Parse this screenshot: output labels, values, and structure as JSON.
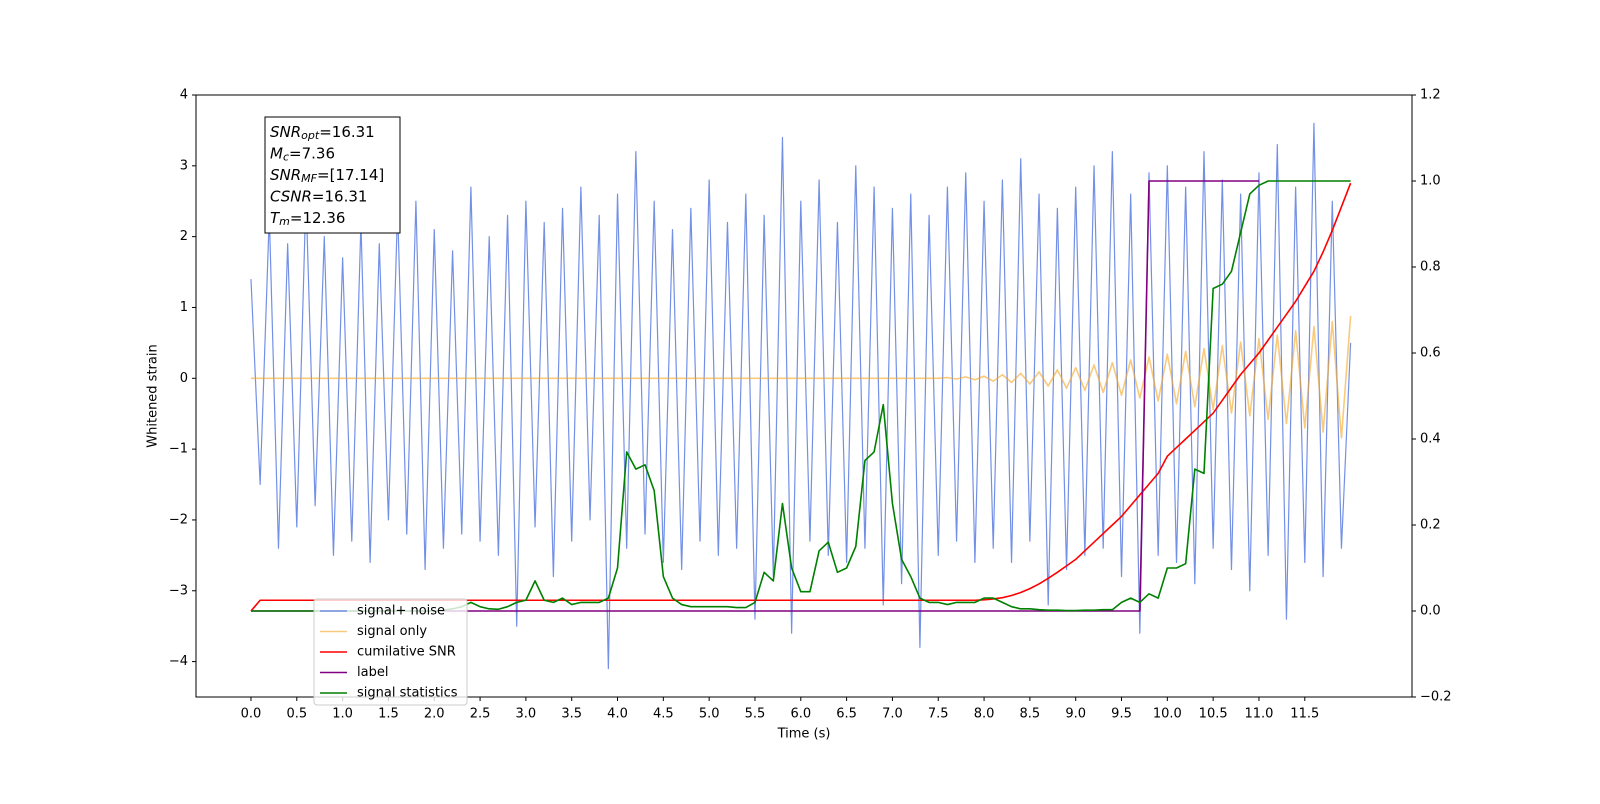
{
  "chart_data": {
    "type": "line",
    "xlabel": "Time (s)",
    "ylabel": "Whitened strain",
    "xlim": [
      -0.6,
      12.67
    ],
    "ylim": [
      -4.5,
      4
    ],
    "y2lim": [
      -0.2,
      1.2
    ],
    "grid": false,
    "legend": "lower left",
    "xticks": [
      {
        "value": 0,
        "label": "0.0"
      },
      0.5,
      {
        "value": 1,
        "label": "1.0"
      },
      1.5,
      {
        "value": 2,
        "label": "2.0"
      },
      2.5,
      {
        "value": 3,
        "label": "3.0"
      },
      3.5,
      {
        "value": 4,
        "label": "4.0"
      },
      4.5,
      {
        "value": 5,
        "label": "5.0"
      },
      5.5,
      {
        "value": 6,
        "label": "6.0"
      },
      6.5,
      {
        "value": 7,
        "label": "7.0"
      },
      7.5,
      {
        "value": 8,
        "label": "8.0"
      },
      8.5,
      {
        "value": 9,
        "label": "9.0"
      },
      9.5,
      {
        "value": 10,
        "label": "10.0"
      },
      10.5,
      {
        "value": 11,
        "label": "11.0"
      },
      11.5
    ],
    "yticks": [
      {
        "value": -4,
        "label": "−4"
      },
      {
        "value": -3,
        "label": "−3"
      },
      {
        "value": -2,
        "label": "−2"
      },
      {
        "value": -1,
        "label": "−1"
      },
      0,
      1,
      2,
      3,
      4
    ],
    "y2ticks": [
      {
        "value": -0.2,
        "label": "−0.2"
      },
      {
        "value": 0,
        "label": "0.0"
      },
      0.2,
      0.4,
      0.6,
      0.8,
      {
        "value": 1,
        "label": "1.0"
      },
      1.2
    ],
    "annotation": [
      {
        "base": "SNR",
        "sub": "opt",
        "rest": "=16.31"
      },
      {
        "base": "M",
        "sub": "c",
        "rest": "=7.36"
      },
      {
        "base": "SNR",
        "sub": "MF",
        "rest": "=[17.14]"
      },
      {
        "base": "CSNR",
        "rest": "=16.31"
      },
      {
        "base": "T",
        "sub": "m",
        "rest": "=12.36"
      }
    ],
    "x": [
      0,
      0.1,
      0.2,
      0.3,
      0.4,
      0.5,
      0.6,
      0.7,
      0.8,
      0.9,
      1,
      1.1,
      1.2,
      1.3,
      1.4,
      1.5,
      1.6,
      1.7,
      1.8,
      1.9,
      2,
      2.1,
      2.2,
      2.3,
      2.4,
      2.5,
      2.6,
      2.7,
      2.8,
      2.9,
      3,
      3.1,
      3.2,
      3.3,
      3.4,
      3.5,
      3.6,
      3.7,
      3.8,
      3.9,
      4,
      4.1,
      4.2,
      4.3,
      4.4,
      4.5,
      4.6,
      4.7,
      4.8,
      4.9,
      5,
      5.1,
      5.2,
      5.3,
      5.4,
      5.5,
      5.6,
      5.7,
      5.8,
      5.9,
      6,
      6.1,
      6.2,
      6.3,
      6.4,
      6.5,
      6.6,
      6.7,
      6.8,
      6.9,
      7,
      7.1,
      7.2,
      7.3,
      7.4,
      7.5,
      7.6,
      7.7,
      7.8,
      7.9,
      8,
      8.1,
      8.2,
      8.3,
      8.4,
      8.5,
      8.6,
      8.7,
      8.8,
      8.9,
      9,
      9.1,
      9.2,
      9.3,
      9.4,
      9.5,
      9.6,
      9.7,
      9.8,
      9.9,
      10,
      10.1,
      10.2,
      10.3,
      10.4,
      10.5,
      10.6,
      10.7,
      10.8,
      10.9,
      11,
      11.1,
      11.2,
      11.3,
      11.4,
      11.5,
      11.6,
      11.7,
      11.8,
      11.9,
      12
    ],
    "series": [
      {
        "name": "signal+ noise",
        "color": "#7390e6",
        "values": [
          1.4,
          -1.5,
          2.3,
          -2.4,
          1.9,
          -2.1,
          2.6,
          -1.8,
          2.0,
          -2.5,
          1.7,
          -2.3,
          2.2,
          -2.6,
          1.9,
          -2.0,
          2.4,
          -2.2,
          2.5,
          -2.7,
          2.1,
          -2.4,
          1.8,
          -2.2,
          2.7,
          -2.3,
          2.0,
          -2.5,
          2.3,
          -3.5,
          2.5,
          -2.1,
          2.2,
          -2.8,
          2.4,
          -2.3,
          2.7,
          -2.0,
          2.3,
          -4.1,
          2.6,
          -2.4,
          3.2,
          -2.2,
          2.5,
          -2.6,
          2.1,
          -2.7,
          2.4,
          -2.3,
          2.8,
          -2.5,
          2.2,
          -2.4,
          2.6,
          -3.4,
          2.3,
          -2.8,
          3.4,
          -3.6,
          2.5,
          -2.3,
          2.8,
          -2.5,
          2.2,
          -2.6,
          3.0,
          -2.4,
          2.7,
          -3.2,
          2.4,
          -2.9,
          2.6,
          -3.8,
          2.3,
          -2.5,
          2.7,
          -2.3,
          2.9,
          -2.6,
          2.5,
          -2.4,
          2.8,
          -2.6,
          3.1,
          -2.3,
          2.6,
          -3.2,
          2.4,
          -2.7,
          2.7,
          -2.5,
          3.0,
          -2.4,
          3.2,
          -2.8,
          2.6,
          -3.6,
          2.9,
          -2.5,
          3.0,
          -2.6,
          2.7,
          -2.9,
          3.2,
          -2.4,
          2.8,
          -2.7,
          2.6,
          -3.0,
          2.9,
          -2.5,
          3.3,
          -3.4,
          2.7,
          -2.6,
          3.6,
          -2.8,
          2.5,
          -2.4,
          0.5
        ]
      },
      {
        "name": "signal only",
        "color": "#f5a623",
        "values": [
          0,
          0,
          0,
          0,
          0,
          0,
          0,
          0,
          0,
          0,
          0,
          0,
          0,
          0,
          0,
          0,
          0,
          0,
          0,
          0,
          0,
          0,
          0,
          0,
          0,
          0,
          0,
          0,
          0,
          0,
          0,
          0,
          0,
          0,
          0,
          0,
          0,
          0,
          0,
          0,
          0,
          0,
          0,
          0,
          0,
          0,
          0,
          0,
          0,
          0,
          0,
          0,
          0,
          0,
          0,
          0,
          0,
          0,
          0,
          0,
          0,
          0,
          0,
          0,
          0,
          0,
          0,
          0,
          0,
          0,
          0,
          0,
          0,
          0,
          0,
          0,
          0.01,
          -0.01,
          0.02,
          -0.02,
          0.03,
          -0.04,
          0.05,
          -0.06,
          0.07,
          -0.08,
          0.09,
          -0.11,
          0.12,
          -0.14,
          0.15,
          -0.17,
          0.19,
          -0.2,
          0.22,
          -0.24,
          0.26,
          -0.28,
          0.3,
          -0.32,
          0.34,
          -0.36,
          0.38,
          -0.4,
          0.42,
          -0.44,
          0.46,
          -0.49,
          0.51,
          -0.53,
          0.56,
          -0.58,
          0.61,
          -0.64,
          0.67,
          -0.7,
          0.73,
          -0.76,
          0.8,
          -0.84,
          0.88
        ]
      },
      {
        "name": "cumilative SNR",
        "color": "#ff0000",
        "axis": "y2",
        "values": [
          0,
          0.025,
          0.025,
          0.025,
          0.025,
          0.025,
          0.025,
          0.025,
          0.025,
          0.025,
          0.025,
          0.025,
          0.025,
          0.025,
          0.025,
          0.025,
          0.025,
          0.025,
          0.025,
          0.025,
          0.025,
          0.025,
          0.025,
          0.025,
          0.025,
          0.025,
          0.025,
          0.025,
          0.025,
          0.025,
          0.025,
          0.025,
          0.025,
          0.025,
          0.025,
          0.025,
          0.025,
          0.025,
          0.025,
          0.025,
          0.025,
          0.025,
          0.025,
          0.025,
          0.025,
          0.025,
          0.025,
          0.025,
          0.025,
          0.025,
          0.025,
          0.025,
          0.025,
          0.025,
          0.025,
          0.025,
          0.025,
          0.025,
          0.025,
          0.025,
          0.025,
          0.025,
          0.025,
          0.025,
          0.025,
          0.025,
          0.025,
          0.025,
          0.025,
          0.025,
          0.025,
          0.025,
          0.025,
          0.025,
          0.025,
          0.025,
          0.025,
          0.025,
          0.025,
          0.025,
          0.026,
          0.028,
          0.031,
          0.036,
          0.043,
          0.052,
          0.063,
          0.076,
          0.09,
          0.105,
          0.12,
          0.14,
          0.16,
          0.18,
          0.2,
          0.22,
          0.245,
          0.27,
          0.295,
          0.32,
          0.36,
          0.38,
          0.4,
          0.42,
          0.44,
          0.46,
          0.49,
          0.52,
          0.55,
          0.575,
          0.6,
          0.63,
          0.66,
          0.69,
          0.72,
          0.755,
          0.79,
          0.835,
          0.885,
          0.94,
          0.995
        ]
      },
      {
        "name": "label",
        "color": "#800080",
        "axis": "y2",
        "values": [
          0,
          0,
          0,
          0,
          0,
          0,
          0,
          0,
          0,
          0,
          0,
          0,
          0,
          0,
          0,
          0,
          0,
          0,
          0,
          0,
          0,
          0,
          0,
          0,
          0,
          0,
          0,
          0,
          0,
          0,
          0,
          0,
          0,
          0,
          0,
          0,
          0,
          0,
          0,
          0,
          0,
          0,
          0,
          0,
          0,
          0,
          0,
          0,
          0,
          0,
          0,
          0,
          0,
          0,
          0,
          0,
          0,
          0,
          0,
          0,
          0,
          0,
          0,
          0,
          0,
          0,
          0,
          0,
          0,
          0,
          0,
          0,
          0,
          0,
          0,
          0,
          0,
          0,
          0,
          0,
          0,
          0,
          0,
          0,
          0,
          0,
          0,
          0,
          0,
          0,
          0,
          0,
          0,
          0,
          0,
          0,
          0,
          0,
          1,
          1,
          1,
          1,
          1,
          1,
          1,
          1,
          1,
          1,
          1,
          1,
          1,
          null,
          null,
          null,
          null,
          null,
          null,
          null,
          null,
          null,
          null
        ]
      },
      {
        "name": "signal statistics",
        "color": "#008000",
        "axis": "y2",
        "values": [
          0,
          0,
          0,
          0,
          0,
          0,
          0,
          0,
          0,
          0,
          0,
          0,
          0,
          0,
          0,
          0,
          0,
          0,
          0,
          0,
          0,
          0.002,
          0.005,
          0.01,
          0.02,
          0.01,
          0.005,
          0.004,
          0.01,
          0.02,
          0.025,
          0.07,
          0.025,
          0.02,
          0.03,
          0.015,
          0.02,
          0.02,
          0.02,
          0.03,
          0.1,
          0.37,
          0.33,
          0.34,
          0.28,
          0.08,
          0.03,
          0.015,
          0.01,
          0.01,
          0.01,
          0.01,
          0.01,
          0.008,
          0.008,
          0.02,
          0.09,
          0.07,
          0.25,
          0.1,
          0.045,
          0.045,
          0.14,
          0.16,
          0.09,
          0.1,
          0.15,
          0.35,
          0.37,
          0.48,
          0.25,
          0.12,
          0.08,
          0.03,
          0.02,
          0.02,
          0.015,
          0.02,
          0.02,
          0.02,
          0.03,
          0.03,
          0.02,
          0.01,
          0.005,
          0.005,
          0.003,
          0.002,
          0.002,
          0.001,
          0.001,
          0.002,
          0.002,
          0.003,
          0.003,
          0.02,
          0.03,
          0.02,
          0.04,
          0.03,
          0.1,
          0.1,
          0.11,
          0.33,
          0.32,
          0.75,
          0.76,
          0.79,
          0.88,
          0.97,
          0.99,
          1,
          1,
          1,
          1,
          1,
          1,
          1,
          1,
          1,
          1
        ]
      }
    ]
  }
}
